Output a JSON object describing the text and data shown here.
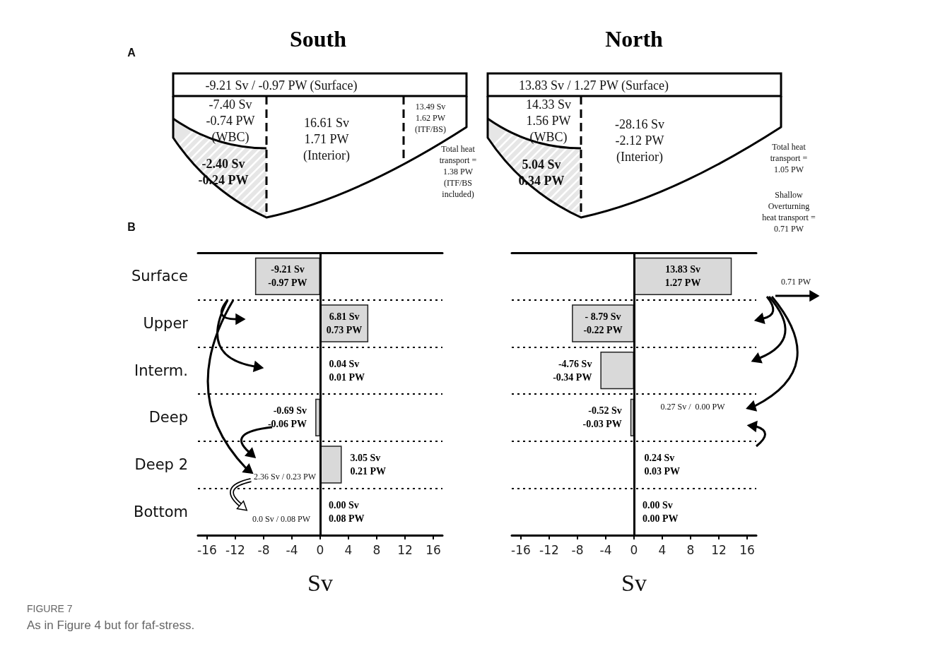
{
  "chart_data": [
    {
      "type": "other",
      "title": "South",
      "annotations": [
        "A",
        "-9.21 Sv / -0.97 PW (Surface)",
        "-7.40 Sv\n-0.74 PW\n(WBC)",
        "-2.40 Sv\n-0.24 PW",
        "16.61 Sv\n1.71 PW\n(Interior)",
        "13.49 Sv\n1.62 PW\n(ITF/BS)",
        "Total heat\ntransport =\n1.38 PW\n(ITF/BS\nincluded)"
      ]
    },
    {
      "type": "other",
      "title": "North",
      "annotations": [
        "13.83 Sv / 1.27 PW (Surface)",
        "14.33 Sv\n1.56 PW\n(WBC)",
        "5.04 Sv\n0.34 PW",
        "-28.16 Sv\n-2.12 PW\n(Interior)",
        "Total heat\ntransport =\n1.05 PW",
        "Shallow\nOverturning\nheat transport =\n0.71 PW"
      ]
    },
    {
      "type": "bar",
      "orientation": "horizontal",
      "categories": [
        "Surface",
        "Upper",
        "Interm.",
        "Deep",
        "Deep 2",
        "Bottom"
      ],
      "values": [
        -9.21,
        6.81,
        0.04,
        -0.69,
        3.05,
        0.0
      ],
      "value_labels": [
        "-9.21 Sv\n-0.97 PW",
        "6.81 Sv\n0.73 PW",
        "0.04 Sv\n0.01 PW",
        "-0.69 Sv\n-0.06 PW",
        "3.05 Sv\n0.21 PW",
        "0.00 Sv\n0.08 PW"
      ],
      "color": "#d9d9d9",
      "xlabel": "Sv",
      "xlim": [
        -17.3,
        17.3
      ],
      "xticks": [
        -16,
        -12,
        -8,
        -4,
        0,
        4,
        8,
        12,
        16
      ],
      "grid": "y",
      "annotations": [
        "B",
        "2.36 Sv / 0.23 PW",
        "0.0 Sv / 0.08 PW",
        "FIGURE 7",
        "As in Figure 4 but for faf-stress."
      ]
    },
    {
      "type": "bar",
      "orientation": "horizontal",
      "categories": [
        null,
        null,
        null,
        null,
        null,
        null
      ],
      "values": [
        13.83,
        -8.79,
        -4.76,
        -0.52,
        0.24,
        0.0
      ],
      "value_labels": [
        "13.83 Sv\n1.27 PW",
        "- 8.79 Sv\n-0.22 PW",
        "-4.76 Sv\n-0.34 PW",
        "-0.52 Sv\n-0.03 PW",
        "0.24 Sv\n0.03 PW",
        "0.00 Sv\n0.00 PW"
      ],
      "color": "#d9d9d9",
      "xlabel": "Sv",
      "xlim": [
        -17.3,
        17.3
      ],
      "xticks": [
        -16,
        -12,
        -8,
        -4,
        0,
        4,
        8,
        12,
        16
      ],
      "grid": "y",
      "annotations": [
        "0.71 PW",
        "0.27 Sv /  0.00 PW"
      ]
    }
  ]
}
